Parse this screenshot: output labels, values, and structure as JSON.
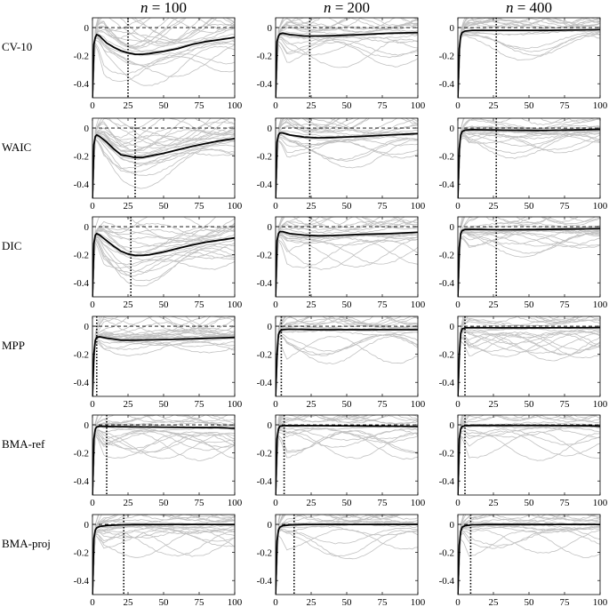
{
  "chart_data": {
    "type": "line",
    "description_columns": [
      "n = 100",
      "n = 200",
      "n = 400"
    ],
    "column_titles": [
      {
        "var": "n",
        "op": " = ",
        "num": "100"
      },
      {
        "var": "n",
        "op": " = ",
        "num": "200"
      },
      {
        "var": "n",
        "op": " = ",
        "num": "400"
      }
    ],
    "row_labels": [
      "CV-10",
      "WAIC",
      "DIC",
      "MPP",
      "BMA-ref",
      "BMA-proj"
    ],
    "xlim": [
      0,
      100
    ],
    "ylim": [
      -0.5,
      0.07
    ],
    "x_ticks": [
      0,
      25,
      50,
      75,
      100
    ],
    "y_ticks": [
      0,
      -0.2,
      -0.4
    ],
    "y_tick_labels": [
      "0",
      "-0.2",
      "-0.4"
    ],
    "reference_line_y": 0,
    "colors": {
      "mean_line": "#000000",
      "replicates": "#c0c0c0",
      "reference": "#000000",
      "selected_size": "#000000"
    },
    "panels": [
      {
        "row": "CV-10",
        "col": "n = 100",
        "selected_size": 25,
        "mean": [
          [
            0,
            -0.5
          ],
          [
            1,
            -0.12
          ],
          [
            2,
            -0.07
          ],
          [
            3,
            -0.05
          ],
          [
            5,
            -0.06
          ],
          [
            7,
            -0.08
          ],
          [
            10,
            -0.11
          ],
          [
            15,
            -0.14
          ],
          [
            20,
            -0.165
          ],
          [
            25,
            -0.18
          ],
          [
            30,
            -0.19
          ],
          [
            35,
            -0.19
          ],
          [
            40,
            -0.185
          ],
          [
            50,
            -0.17
          ],
          [
            60,
            -0.15
          ],
          [
            70,
            -0.12
          ],
          [
            80,
            -0.1
          ],
          [
            90,
            -0.085
          ],
          [
            100,
            -0.07
          ]
        ]
      },
      {
        "row": "CV-10",
        "col": "n = 200",
        "selected_size": 24,
        "mean": [
          [
            0,
            -0.5
          ],
          [
            1,
            -0.1
          ],
          [
            2,
            -0.06
          ],
          [
            3,
            -0.045
          ],
          [
            5,
            -0.04
          ],
          [
            10,
            -0.05
          ],
          [
            20,
            -0.06
          ],
          [
            30,
            -0.06
          ],
          [
            40,
            -0.058
          ],
          [
            60,
            -0.05
          ],
          [
            80,
            -0.04
          ],
          [
            100,
            -0.035
          ]
        ]
      },
      {
        "row": "CV-10",
        "col": "n = 400",
        "selected_size": 27,
        "mean": [
          [
            0,
            -0.5
          ],
          [
            1,
            -0.15
          ],
          [
            2,
            -0.06
          ],
          [
            3,
            -0.035
          ],
          [
            5,
            -0.025
          ],
          [
            10,
            -0.02
          ],
          [
            30,
            -0.02
          ],
          [
            60,
            -0.02
          ],
          [
            100,
            -0.015
          ]
        ]
      },
      {
        "row": "WAIC",
        "col": "n = 100",
        "selected_size": 30,
        "mean": [
          [
            0,
            -0.5
          ],
          [
            1,
            -0.12
          ],
          [
            2,
            -0.06
          ],
          [
            3,
            -0.05
          ],
          [
            5,
            -0.06
          ],
          [
            10,
            -0.1
          ],
          [
            15,
            -0.15
          ],
          [
            20,
            -0.19
          ],
          [
            25,
            -0.2
          ],
          [
            30,
            -0.21
          ],
          [
            35,
            -0.21
          ],
          [
            40,
            -0.2
          ],
          [
            50,
            -0.18
          ],
          [
            60,
            -0.155
          ],
          [
            70,
            -0.13
          ],
          [
            80,
            -0.11
          ],
          [
            90,
            -0.09
          ],
          [
            100,
            -0.075
          ]
        ]
      },
      {
        "row": "WAIC",
        "col": "n = 200",
        "selected_size": 24,
        "mean": [
          [
            0,
            -0.5
          ],
          [
            1,
            -0.1
          ],
          [
            2,
            -0.05
          ],
          [
            3,
            -0.035
          ],
          [
            5,
            -0.035
          ],
          [
            10,
            -0.05
          ],
          [
            20,
            -0.065
          ],
          [
            30,
            -0.07
          ],
          [
            40,
            -0.068
          ],
          [
            60,
            -0.06
          ],
          [
            80,
            -0.05
          ],
          [
            100,
            -0.04
          ]
        ]
      },
      {
        "row": "WAIC",
        "col": "n = 400",
        "selected_size": 27,
        "mean": [
          [
            0,
            -0.5
          ],
          [
            1,
            -0.15
          ],
          [
            2,
            -0.05
          ],
          [
            3,
            -0.025
          ],
          [
            5,
            -0.015
          ],
          [
            10,
            -0.012
          ],
          [
            30,
            -0.015
          ],
          [
            60,
            -0.018
          ],
          [
            100,
            -0.01
          ]
        ]
      },
      {
        "row": "DIC",
        "col": "n = 100",
        "selected_size": 27,
        "mean": [
          [
            0,
            -0.5
          ],
          [
            1,
            -0.12
          ],
          [
            2,
            -0.06
          ],
          [
            3,
            -0.05
          ],
          [
            5,
            -0.06
          ],
          [
            10,
            -0.1
          ],
          [
            15,
            -0.14
          ],
          [
            20,
            -0.175
          ],
          [
            25,
            -0.195
          ],
          [
            30,
            -0.205
          ],
          [
            35,
            -0.205
          ],
          [
            40,
            -0.2
          ],
          [
            50,
            -0.18
          ],
          [
            60,
            -0.155
          ],
          [
            70,
            -0.13
          ],
          [
            80,
            -0.11
          ],
          [
            90,
            -0.095
          ],
          [
            100,
            -0.08
          ]
        ]
      },
      {
        "row": "DIC",
        "col": "n = 200",
        "selected_size": 24,
        "mean": [
          [
            0,
            -0.5
          ],
          [
            1,
            -0.1
          ],
          [
            2,
            -0.05
          ],
          [
            3,
            -0.035
          ],
          [
            5,
            -0.035
          ],
          [
            10,
            -0.05
          ],
          [
            20,
            -0.06
          ],
          [
            30,
            -0.065
          ],
          [
            40,
            -0.063
          ],
          [
            60,
            -0.055
          ],
          [
            80,
            -0.05
          ],
          [
            100,
            -0.04
          ]
        ]
      },
      {
        "row": "DIC",
        "col": "n = 400",
        "selected_size": 27,
        "mean": [
          [
            0,
            -0.5
          ],
          [
            1,
            -0.15
          ],
          [
            2,
            -0.05
          ],
          [
            3,
            -0.028
          ],
          [
            5,
            -0.02
          ],
          [
            10,
            -0.02
          ],
          [
            30,
            -0.022
          ],
          [
            60,
            -0.02
          ],
          [
            100,
            -0.015
          ]
        ]
      },
      {
        "row": "MPP",
        "col": "n = 100",
        "selected_size": 3,
        "mean": [
          [
            0,
            -0.5
          ],
          [
            1,
            -0.2
          ],
          [
            2,
            -0.1
          ],
          [
            3,
            -0.08
          ],
          [
            5,
            -0.075
          ],
          [
            10,
            -0.085
          ],
          [
            20,
            -0.1
          ],
          [
            30,
            -0.1
          ],
          [
            50,
            -0.095
          ],
          [
            70,
            -0.09
          ],
          [
            100,
            -0.08
          ]
        ]
      },
      {
        "row": "MPP",
        "col": "n = 200",
        "selected_size": 4,
        "mean": [
          [
            0,
            -0.5
          ],
          [
            1,
            -0.2
          ],
          [
            2,
            -0.06
          ],
          [
            3,
            -0.035
          ],
          [
            5,
            -0.025
          ],
          [
            10,
            -0.022
          ],
          [
            30,
            -0.025
          ],
          [
            60,
            -0.025
          ],
          [
            100,
            -0.025
          ]
        ]
      },
      {
        "row": "MPP",
        "col": "n = 400",
        "selected_size": 5,
        "mean": [
          [
            0,
            -0.5
          ],
          [
            1,
            -0.2
          ],
          [
            2,
            -0.05
          ],
          [
            3,
            -0.02
          ],
          [
            5,
            -0.012
          ],
          [
            10,
            -0.01
          ],
          [
            30,
            -0.012
          ],
          [
            60,
            -0.012
          ],
          [
            100,
            -0.01
          ]
        ]
      },
      {
        "row": "BMA-ref",
        "col": "n = 100",
        "selected_size": 10,
        "mean": [
          [
            0,
            -0.5
          ],
          [
            1,
            -0.1
          ],
          [
            2,
            -0.03
          ],
          [
            3,
            -0.015
          ],
          [
            5,
            -0.01
          ],
          [
            10,
            -0.012
          ],
          [
            30,
            -0.015
          ],
          [
            60,
            -0.018
          ],
          [
            90,
            -0.02
          ],
          [
            100,
            -0.025
          ]
        ]
      },
      {
        "row": "BMA-ref",
        "col": "n = 200",
        "selected_size": 6,
        "mean": [
          [
            0,
            -0.5
          ],
          [
            1,
            -0.1
          ],
          [
            2,
            -0.03
          ],
          [
            3,
            -0.01
          ],
          [
            5,
            -0.006
          ],
          [
            10,
            -0.005
          ],
          [
            30,
            -0.006
          ],
          [
            60,
            -0.008
          ],
          [
            90,
            -0.01
          ],
          [
            100,
            -0.012
          ]
        ]
      },
      {
        "row": "BMA-ref",
        "col": "n = 400",
        "selected_size": 5,
        "mean": [
          [
            0,
            -0.5
          ],
          [
            1,
            -0.1
          ],
          [
            2,
            -0.03
          ],
          [
            3,
            -0.012
          ],
          [
            5,
            -0.006
          ],
          [
            10,
            -0.004
          ],
          [
            30,
            -0.004
          ],
          [
            60,
            -0.004
          ],
          [
            90,
            -0.006
          ],
          [
            100,
            -0.01
          ]
        ]
      },
      {
        "row": "BMA-proj",
        "col": "n = 100",
        "selected_size": 22,
        "mean": [
          [
            0,
            -0.5
          ],
          [
            1,
            -0.1
          ],
          [
            2,
            -0.04
          ],
          [
            3,
            -0.025
          ],
          [
            5,
            -0.015
          ],
          [
            10,
            -0.008
          ],
          [
            20,
            -0.003
          ],
          [
            30,
            -0.001
          ],
          [
            60,
            0
          ],
          [
            100,
            0
          ]
        ]
      },
      {
        "row": "BMA-proj",
        "col": "n = 200",
        "selected_size": 13,
        "mean": [
          [
            0,
            -0.5
          ],
          [
            1,
            -0.12
          ],
          [
            2,
            -0.04
          ],
          [
            3,
            -0.02
          ],
          [
            5,
            -0.01
          ],
          [
            10,
            -0.004
          ],
          [
            20,
            -0.001
          ],
          [
            30,
            0
          ],
          [
            60,
            0
          ],
          [
            100,
            0
          ]
        ]
      },
      {
        "row": "BMA-proj",
        "col": "n = 400",
        "selected_size": 9,
        "mean": [
          [
            0,
            -0.5
          ],
          [
            1,
            -0.15
          ],
          [
            2,
            -0.05
          ],
          [
            3,
            -0.02
          ],
          [
            5,
            -0.01
          ],
          [
            10,
            -0.003
          ],
          [
            20,
            0
          ],
          [
            60,
            0
          ],
          [
            100,
            0
          ]
        ]
      }
    ]
  }
}
